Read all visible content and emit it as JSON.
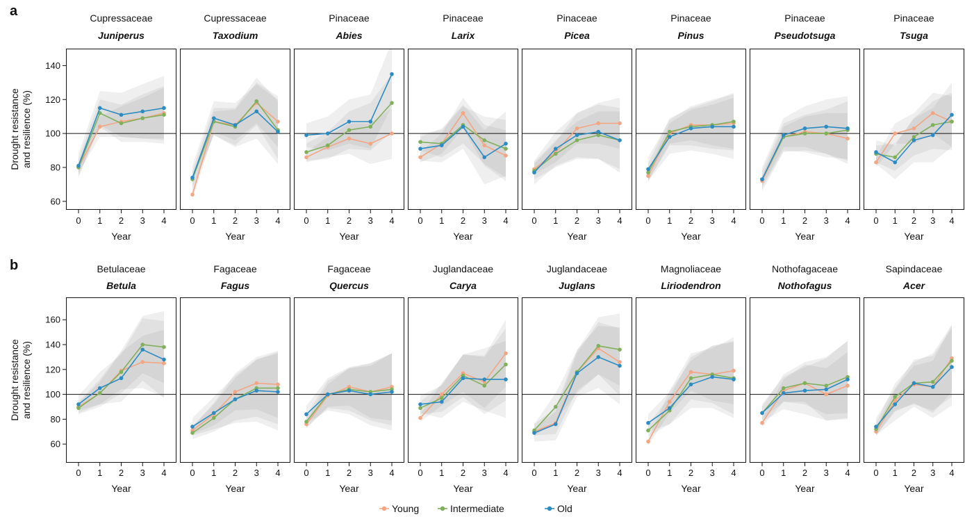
{
  "panels": [
    {
      "letter": "a"
    },
    {
      "letter": "b"
    }
  ],
  "legend": {
    "entries": [
      {
        "label": "Young",
        "color": "#f4a582"
      },
      {
        "label": "Intermediate",
        "color": "#7fb05a"
      },
      {
        "label": "Old",
        "color": "#2b8cc4"
      }
    ]
  },
  "reference_line": 100,
  "chart_data": [
    {
      "row": "a",
      "type": "line",
      "title": "Cupressaceae",
      "subtitle": "Juniperus",
      "xlabel": "Year",
      "ylabel": "Drought resistance and resilience (%)",
      "x": [
        0,
        1,
        2,
        3,
        4
      ],
      "ylim": [
        55,
        150
      ],
      "yticks": [
        60,
        80,
        100,
        120,
        140
      ],
      "show_yaxis": true,
      "series": [
        {
          "name": "Young",
          "color": "#f4a582",
          "values": [
            80,
            104,
            107,
            109,
            112
          ]
        },
        {
          "name": "Intermediate",
          "color": "#7fb05a",
          "values": [
            80,
            112,
            106,
            109,
            111
          ]
        },
        {
          "name": "Old",
          "color": "#2b8cc4",
          "values": [
            81,
            115,
            111,
            113,
            115
          ]
        }
      ]
    },
    {
      "row": "a",
      "type": "line",
      "title": "Cupressaceae",
      "subtitle": "Taxodium",
      "xlabel": "Year",
      "x": [
        0,
        1,
        2,
        3,
        4
      ],
      "ylim": [
        55,
        150
      ],
      "yticks": [
        60,
        80,
        100,
        120,
        140
      ],
      "show_yaxis": false,
      "series": [
        {
          "name": "Young",
          "color": "#f4a582",
          "values": [
            64,
            107,
            105,
            118,
            107
          ]
        },
        {
          "name": "Intermediate",
          "color": "#7fb05a",
          "values": [
            73,
            107,
            104,
            119,
            102
          ]
        },
        {
          "name": "Old",
          "color": "#2b8cc4",
          "values": [
            74,
            109,
            105,
            113,
            101
          ]
        }
      ]
    },
    {
      "row": "a",
      "type": "line",
      "title": "Pinaceae",
      "subtitle": "Abies",
      "xlabel": "Year",
      "x": [
        0,
        1,
        2,
        3,
        4
      ],
      "ylim": [
        55,
        150
      ],
      "yticks": [
        60,
        80,
        100,
        120,
        140
      ],
      "show_yaxis": false,
      "series": [
        {
          "name": "Young",
          "color": "#f4a582",
          "values": [
            86,
            92,
            97,
            94,
            100
          ]
        },
        {
          "name": "Intermediate",
          "color": "#7fb05a",
          "values": [
            89,
            93,
            102,
            104,
            118
          ]
        },
        {
          "name": "Old",
          "color": "#2b8cc4",
          "values": [
            99,
            100,
            107,
            107,
            135
          ]
        }
      ]
    },
    {
      "row": "a",
      "type": "line",
      "title": "Pinaceae",
      "subtitle": "Larix",
      "xlabel": "Year",
      "x": [
        0,
        1,
        2,
        3,
        4
      ],
      "ylim": [
        55,
        150
      ],
      "yticks": [
        60,
        80,
        100,
        120,
        140
      ],
      "show_yaxis": false,
      "series": [
        {
          "name": "Young",
          "color": "#f4a582",
          "values": [
            86,
            94,
            112,
            93,
            87
          ]
        },
        {
          "name": "Intermediate",
          "color": "#7fb05a",
          "values": [
            95,
            94,
            105,
            96,
            91
          ]
        },
        {
          "name": "Old",
          "color": "#2b8cc4",
          "values": [
            91,
            93,
            104,
            86,
            94
          ]
        }
      ]
    },
    {
      "row": "a",
      "type": "line",
      "title": "Pinaceae",
      "subtitle": "Picea",
      "xlabel": "Year",
      "x": [
        0,
        1,
        2,
        3,
        4
      ],
      "ylim": [
        55,
        150
      ],
      "yticks": [
        60,
        80,
        100,
        120,
        140
      ],
      "show_yaxis": false,
      "series": [
        {
          "name": "Young",
          "color": "#f4a582",
          "values": [
            79,
            89,
            103,
            106,
            106
          ]
        },
        {
          "name": "Intermediate",
          "color": "#7fb05a",
          "values": [
            78,
            88,
            96,
            99,
            96
          ]
        },
        {
          "name": "Old",
          "color": "#2b8cc4",
          "values": [
            77,
            91,
            99,
            101,
            96
          ]
        }
      ]
    },
    {
      "row": "a",
      "type": "line",
      "title": "Pinaceae",
      "subtitle": "Pinus",
      "xlabel": "Year",
      "x": [
        0,
        1,
        2,
        3,
        4
      ],
      "ylim": [
        55,
        150
      ],
      "yticks": [
        60,
        80,
        100,
        120,
        140
      ],
      "show_yaxis": false,
      "series": [
        {
          "name": "Young",
          "color": "#f4a582",
          "values": [
            75,
            100,
            105,
            105,
            106
          ]
        },
        {
          "name": "Intermediate",
          "color": "#7fb05a",
          "values": [
            77,
            101,
            104,
            105,
            107
          ]
        },
        {
          "name": "Old",
          "color": "#2b8cc4",
          "values": [
            79,
            98,
            103,
            104,
            104
          ]
        }
      ]
    },
    {
      "row": "a",
      "type": "line",
      "title": "Pinaceae",
      "subtitle": "Pseudotsuga",
      "xlabel": "Year",
      "x": [
        0,
        1,
        2,
        3,
        4
      ],
      "ylim": [
        55,
        150
      ],
      "yticks": [
        60,
        80,
        100,
        120,
        140
      ],
      "show_yaxis": false,
      "series": [
        {
          "name": "Young",
          "color": "#f4a582",
          "values": [
            72,
            98,
            101,
            100,
            97
          ]
        },
        {
          "name": "Intermediate",
          "color": "#7fb05a",
          "values": [
            73,
            98,
            100,
            100,
            102
          ]
        },
        {
          "name": "Old",
          "color": "#2b8cc4",
          "values": [
            73,
            99,
            103,
            104,
            103
          ]
        }
      ]
    },
    {
      "row": "a",
      "type": "line",
      "title": "Pinaceae",
      "subtitle": "Tsuga",
      "xlabel": "Year",
      "x": [
        0,
        1,
        2,
        3,
        4
      ],
      "ylim": [
        55,
        150
      ],
      "yticks": [
        60,
        80,
        100,
        120,
        140
      ],
      "show_yaxis": false,
      "series": [
        {
          "name": "Young",
          "color": "#f4a582",
          "values": [
            83,
            100,
            103,
            112,
            107
          ]
        },
        {
          "name": "Intermediate",
          "color": "#7fb05a",
          "values": [
            88,
            86,
            98,
            105,
            107
          ]
        },
        {
          "name": "Old",
          "color": "#2b8cc4",
          "values": [
            89,
            83,
            96,
            99,
            111
          ]
        }
      ]
    },
    {
      "row": "b",
      "type": "line",
      "title": "Betulaceae",
      "subtitle": "Betula",
      "xlabel": "Year",
      "ylabel": "Drought resistance and resilience (%)",
      "x": [
        0,
        1,
        2,
        3,
        4
      ],
      "ylim": [
        45,
        178
      ],
      "yticks": [
        60,
        80,
        100,
        120,
        140,
        160
      ],
      "show_yaxis": true,
      "series": [
        {
          "name": "Young",
          "color": "#f4a582",
          "values": [
            90,
            101,
            119,
            126,
            125
          ]
        },
        {
          "name": "Intermediate",
          "color": "#7fb05a",
          "values": [
            89,
            101,
            118,
            140,
            138
          ]
        },
        {
          "name": "Old",
          "color": "#2b8cc4",
          "values": [
            92,
            105,
            113,
            136,
            128
          ]
        }
      ]
    },
    {
      "row": "b",
      "type": "line",
      "title": "Fagaceae",
      "subtitle": "Fagus",
      "xlabel": "Year",
      "x": [
        0,
        1,
        2,
        3,
        4
      ],
      "ylim": [
        45,
        178
      ],
      "yticks": [
        60,
        80,
        100,
        120,
        140,
        160
      ],
      "show_yaxis": false,
      "series": [
        {
          "name": "Young",
          "color": "#f4a582",
          "values": [
            71,
            84,
            102,
            109,
            108
          ]
        },
        {
          "name": "Intermediate",
          "color": "#7fb05a",
          "values": [
            69,
            81,
            96,
            105,
            105
          ]
        },
        {
          "name": "Old",
          "color": "#2b8cc4",
          "values": [
            74,
            85,
            96,
            103,
            102
          ]
        }
      ]
    },
    {
      "row": "b",
      "type": "line",
      "title": "Fagaceae",
      "subtitle": "Quercus",
      "xlabel": "Year",
      "x": [
        0,
        1,
        2,
        3,
        4
      ],
      "ylim": [
        45,
        178
      ],
      "yticks": [
        60,
        80,
        100,
        120,
        140,
        160
      ],
      "show_yaxis": false,
      "series": [
        {
          "name": "Young",
          "color": "#f4a582",
          "values": [
            76,
            99,
            106,
            102,
            106
          ]
        },
        {
          "name": "Intermediate",
          "color": "#7fb05a",
          "values": [
            78,
            100,
            104,
            102,
            104
          ]
        },
        {
          "name": "Old",
          "color": "#2b8cc4",
          "values": [
            84,
            100,
            103,
            100,
            102
          ]
        }
      ]
    },
    {
      "row": "b",
      "type": "line",
      "title": "Juglandaceae",
      "subtitle": "Carya",
      "xlabel": "Year",
      "x": [
        0,
        1,
        2,
        3,
        4
      ],
      "ylim": [
        45,
        178
      ],
      "yticks": [
        60,
        80,
        100,
        120,
        140,
        160
      ],
      "show_yaxis": false,
      "series": [
        {
          "name": "Young",
          "color": "#f4a582",
          "values": [
            81,
            100,
            117,
            110,
            133
          ]
        },
        {
          "name": "Intermediate",
          "color": "#7fb05a",
          "values": [
            89,
            97,
            115,
            107,
            124
          ]
        },
        {
          "name": "Old",
          "color": "#2b8cc4",
          "values": [
            92,
            94,
            113,
            112,
            112
          ]
        }
      ]
    },
    {
      "row": "b",
      "type": "line",
      "title": "Juglandaceae",
      "subtitle": "Juglans",
      "xlabel": "Year",
      "x": [
        0,
        1,
        2,
        3,
        4
      ],
      "ylim": [
        45,
        178
      ],
      "yticks": [
        60,
        80,
        100,
        120,
        140,
        160
      ],
      "show_yaxis": false,
      "series": [
        {
          "name": "Young",
          "color": "#f4a582",
          "values": [
            70,
            77,
            118,
            137,
            126
          ]
        },
        {
          "name": "Intermediate",
          "color": "#7fb05a",
          "values": [
            71,
            90,
            118,
            139,
            136
          ]
        },
        {
          "name": "Old",
          "color": "#2b8cc4",
          "values": [
            69,
            76,
            117,
            130,
            123
          ]
        }
      ]
    },
    {
      "row": "b",
      "type": "line",
      "title": "Magnoliaceae",
      "subtitle": "Liriodendron",
      "xlabel": "Year",
      "x": [
        0,
        1,
        2,
        3,
        4
      ],
      "ylim": [
        45,
        178
      ],
      "yticks": [
        60,
        80,
        100,
        120,
        140,
        160
      ],
      "show_yaxis": false,
      "series": [
        {
          "name": "Young",
          "color": "#f4a582",
          "values": [
            62,
            94,
            118,
            116,
            119
          ]
        },
        {
          "name": "Intermediate",
          "color": "#7fb05a",
          "values": [
            71,
            87,
            113,
            116,
            113
          ]
        },
        {
          "name": "Old",
          "color": "#2b8cc4",
          "values": [
            77,
            89,
            108,
            114,
            112
          ]
        }
      ]
    },
    {
      "row": "b",
      "type": "line",
      "title": "Nothofagaceae",
      "subtitle": "Nothofagus",
      "xlabel": "Year",
      "x": [
        0,
        1,
        2,
        3,
        4
      ],
      "ylim": [
        45,
        178
      ],
      "yticks": [
        60,
        80,
        100,
        120,
        140,
        160
      ],
      "show_yaxis": false,
      "series": [
        {
          "name": "Young",
          "color": "#f4a582",
          "values": [
            77,
            103,
            109,
            100,
            107
          ]
        },
        {
          "name": "Intermediate",
          "color": "#7fb05a",
          "values": [
            85,
            105,
            109,
            107,
            114
          ]
        },
        {
          "name": "Old",
          "color": "#2b8cc4",
          "values": [
            85,
            101,
            103,
            104,
            112
          ]
        }
      ]
    },
    {
      "row": "b",
      "type": "line",
      "title": "Sapindaceae",
      "subtitle": "Acer",
      "xlabel": "Year",
      "x": [
        0,
        1,
        2,
        3,
        4
      ],
      "ylim": [
        45,
        178
      ],
      "yticks": [
        60,
        80,
        100,
        120,
        140,
        160
      ],
      "show_yaxis": false,
      "series": [
        {
          "name": "Young",
          "color": "#f4a582",
          "values": [
            70,
            95,
            108,
            106,
            129
          ]
        },
        {
          "name": "Intermediate",
          "color": "#7fb05a",
          "values": [
            72,
            98,
            109,
            110,
            127
          ]
        },
        {
          "name": "Old",
          "color": "#2b8cc4",
          "values": [
            74,
            92,
            109,
            106,
            122
          ]
        }
      ]
    }
  ]
}
